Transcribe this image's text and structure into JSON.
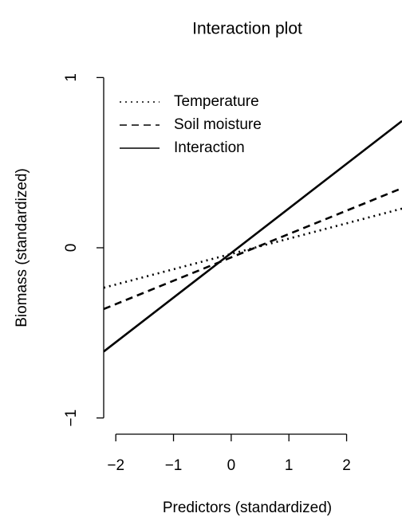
{
  "chart_data": {
    "type": "line",
    "title": "Interaction plot",
    "x_label": "Predictors (standardized)",
    "y_label": "Biomass (standardized)",
    "x": [
      -2.21,
      2.96
    ],
    "series": [
      {
        "name": "Temperature",
        "color": "#000000",
        "linestyle": "dotted",
        "values": [
          -0.235,
          0.23
        ]
      },
      {
        "name": "Soil moisture",
        "color": "#000000",
        "linestyle": "dashed",
        "values": [
          -0.36,
          0.35
        ]
      },
      {
        "name": "Interaction",
        "color": "#000000",
        "linestyle": "solid",
        "values": [
          -0.61,
          0.745
        ]
      }
    ],
    "xlim": [
      -2.21,
      2.96
    ],
    "ylim": [
      -1.1,
      1.1
    ],
    "xticks": [
      {
        "value": -2,
        "label": "−2"
      },
      {
        "value": -1,
        "label": "−1"
      },
      0,
      1,
      2
    ],
    "yticks": [
      {
        "value": -1,
        "label": "−1"
      },
      0,
      1
    ],
    "grid": false,
    "legend": "top-left"
  }
}
